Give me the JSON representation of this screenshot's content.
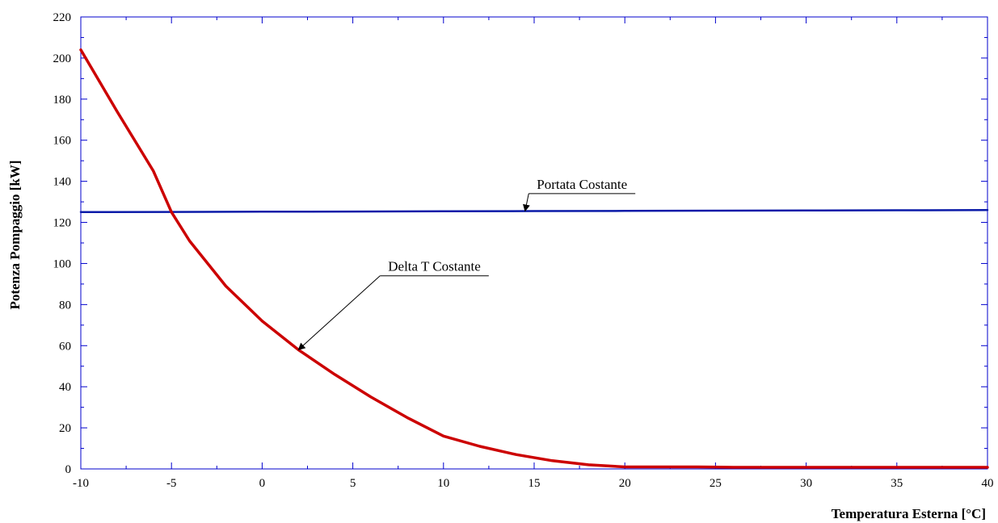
{
  "chart_data": {
    "type": "line",
    "title": "",
    "xlabel": "Temperatura Esterna [°C]",
    "ylabel": "Potenza Pompaggio [kW]",
    "xlim": [
      -10,
      40
    ],
    "ylim": [
      0,
      220
    ],
    "x_ticks": [
      -10,
      -5,
      0,
      5,
      10,
      15,
      20,
      25,
      30,
      35,
      40
    ],
    "y_ticks": [
      0,
      20,
      40,
      60,
      80,
      100,
      120,
      140,
      160,
      180,
      200,
      220
    ],
    "grid": false,
    "colors": {
      "frame": "#0000cc",
      "portata": "#0a1aa8",
      "delta": "#cc0000"
    },
    "series": [
      {
        "name": "Portata Costante",
        "x": [
          -10,
          -5,
          0,
          5,
          10,
          15,
          20,
          25,
          30,
          35,
          40
        ],
        "y": [
          125,
          125.1,
          125.2,
          125.3,
          125.4,
          125.5,
          125.6,
          125.7,
          125.8,
          125.9,
          126
        ]
      },
      {
        "name": "Delta T Costante",
        "x": [
          -10,
          -8,
          -6,
          -5,
          -4,
          -2,
          0,
          2,
          4,
          6,
          8,
          10,
          12,
          14,
          16,
          18,
          20,
          22,
          24,
          26,
          30,
          35,
          40
        ],
        "y": [
          204,
          174,
          145,
          125,
          111,
          89,
          72,
          58,
          46,
          35,
          25,
          16,
          11,
          7,
          4,
          2,
          1,
          1,
          1,
          0.8,
          0.8,
          0.8,
          0.8
        ]
      }
    ],
    "annotations": [
      {
        "text": "Portata Costante",
        "label_at": [
          14.7,
          134
        ],
        "points_to": [
          14.5,
          125.5
        ]
      },
      {
        "text": "Delta T Costante",
        "label_at": [
          6.5,
          94
        ],
        "points_to": [
          2,
          58
        ]
      }
    ]
  }
}
